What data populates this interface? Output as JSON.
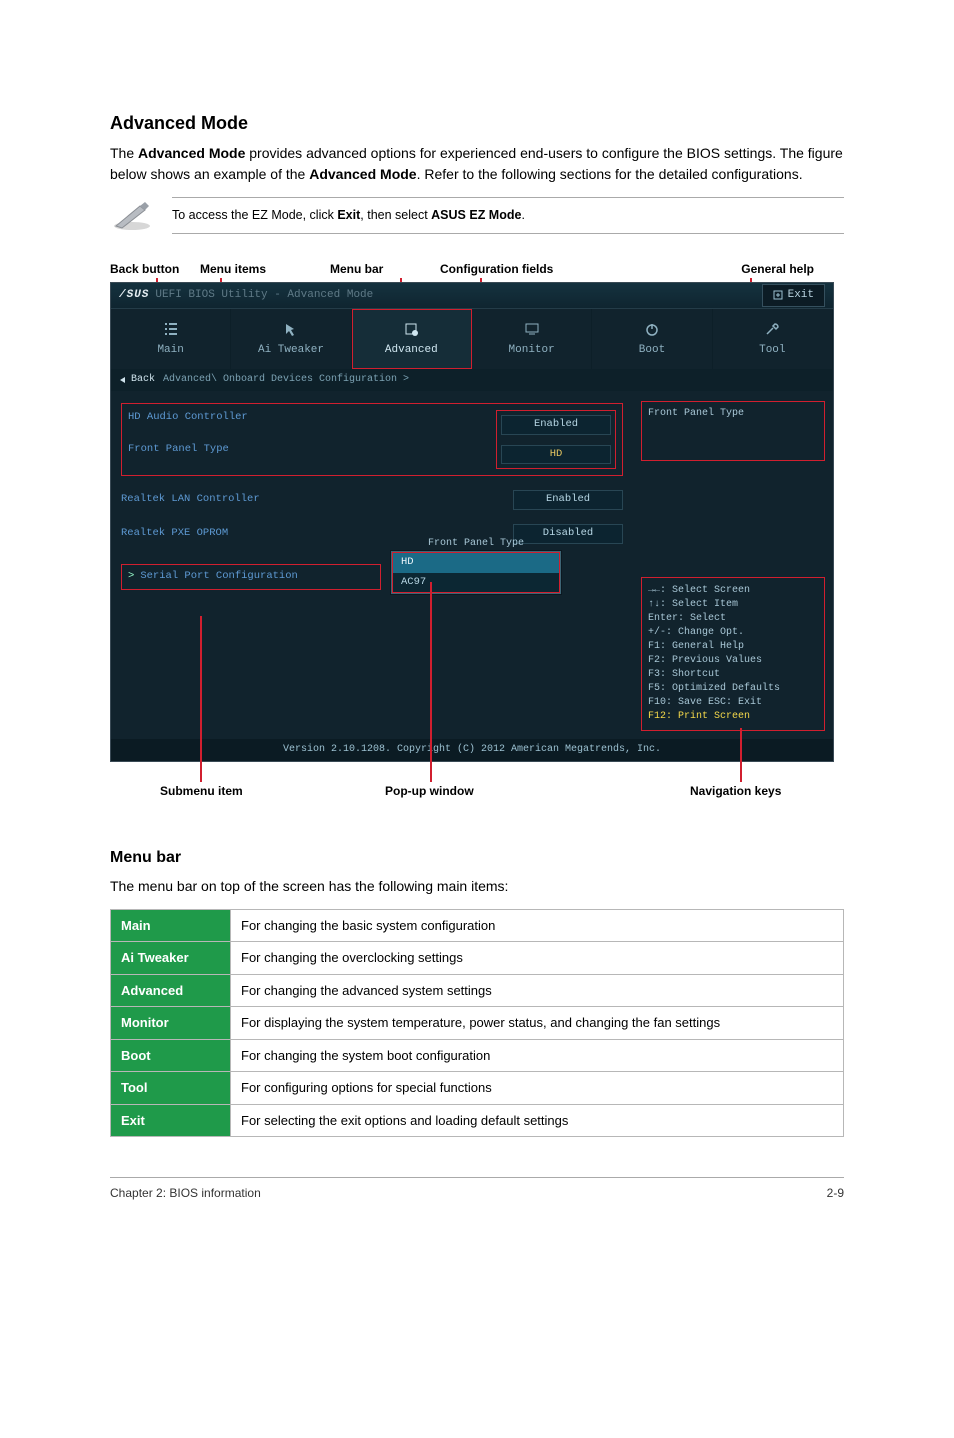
{
  "section1": {
    "heading": "Advanced Mode",
    "para_pre": "The ",
    "para_b1": "Advanced Mode",
    "para_mid": " provides advanced options for experienced end-users to configure the BIOS settings. The figure below shows an example of the ",
    "para_b2": "Advanced Mode",
    "para_post": ". Refer to the following sections for the detailed configurations."
  },
  "note": {
    "pre": "To access the EZ Mode, click ",
    "b1": "Exit",
    "mid": ", then select ",
    "b2": "ASUS EZ Mode",
    "post": "."
  },
  "callouts_top": {
    "back": "Back button",
    "menu_items": "Menu items",
    "menu_bar": "Menu bar",
    "config": "Configuration fields",
    "help": "General help"
  },
  "bios": {
    "titlebar_logo": "/SUS",
    "titlebar_sub": "UEFI BIOS Utility - Advanced Mode",
    "exit_label": "Exit",
    "tabs": {
      "main": "Main",
      "ai": "Ai Tweaker",
      "adv": "Advanced",
      "mon": "Monitor",
      "boot": "Boot",
      "tool": "Tool"
    },
    "breadcrumb_back": "Back",
    "breadcrumb_path": "Advanced\\ Onboard Devices Configuration >",
    "rows": {
      "hd_audio": {
        "label": "HD Audio Controller",
        "value": "Enabled"
      },
      "front_panel": {
        "label": "Front Panel Type",
        "value": "HD"
      },
      "lan": {
        "label": "Realtek LAN Controller",
        "value": "Enabled"
      },
      "pxe": {
        "label": "Realtek PXE OPROM",
        "value": "Disabled"
      },
      "serial": "Serial Port Configuration"
    },
    "popup": {
      "title": "Front Panel Type",
      "opt1": "HD",
      "opt2": "AC97"
    },
    "help_title": "Front Panel Type",
    "nav": {
      "l1": "→←: Select Screen",
      "l2": "↑↓: Select Item",
      "l3": "Enter: Select",
      "l4": "+/-: Change Opt.",
      "l5": "F1: General Help",
      "l6": "F2: Previous Values",
      "l7": "F3: Shortcut",
      "l8": "F5: Optimized Defaults",
      "l9": "F10: Save  ESC: Exit",
      "l10": "F12: Print Screen"
    },
    "status": "Version 2.10.1208. Copyright (C) 2012 American Megatrends, Inc."
  },
  "callouts_bottom": {
    "submenu": "Submenu item",
    "popup": "Pop-up window",
    "nav": "Navigation keys"
  },
  "section2": {
    "heading": "Menu bar",
    "para": "The menu bar on top of the screen has the following main items:"
  },
  "table": {
    "rows": [
      {
        "key": "Main",
        "val": "For changing the basic system configuration"
      },
      {
        "key": "Ai Tweaker",
        "val": "For changing the overclocking settings"
      },
      {
        "key": "Advanced",
        "val": "For changing the advanced system settings"
      },
      {
        "key": "Monitor",
        "val": "For displaying the system temperature, power status, and changing the fan settings"
      },
      {
        "key": "Boot",
        "val": "For changing the system boot configuration"
      },
      {
        "key": "Tool",
        "val": "For configuring options for special functions"
      },
      {
        "key": "Exit",
        "val": "For selecting the exit options and loading default settings"
      }
    ]
  },
  "footer": {
    "left": "Chapter 2: BIOS information",
    "right": "2-9"
  },
  "colors": {
    "green": "#1f9a4a",
    "red": "#d11f2f",
    "bios_bg": "#11232d"
  }
}
